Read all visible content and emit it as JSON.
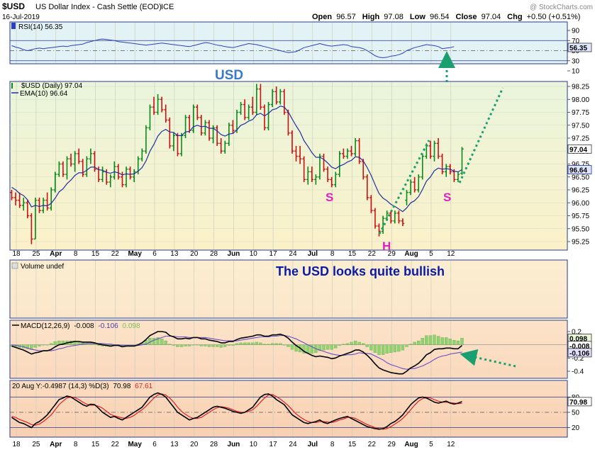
{
  "header": {
    "symbol": "$USD",
    "name": "US Dollar Index - Cash Settle (EOD)",
    "exchange": "ICE",
    "date": "16-Jul-2019",
    "open_label": "Open",
    "open": "96.57",
    "high_label": "High",
    "high": "97.08",
    "low_label": "Low",
    "low": "96.54",
    "close_label": "Close",
    "close": "97.04",
    "chg_label": "Chg",
    "chg": "+0.50 (+0.51%)",
    "copyright": "@ StockCharts.com"
  },
  "colors": {
    "up": "#0a8a1a",
    "down": "#cc1111",
    "ema": "#1f2fa0",
    "rsi": "#2a40c0",
    "macd_line": "#000000",
    "macd_signal": "#6a50c8",
    "hist": "#8ed46e",
    "stoch_k": "#000000",
    "stoch_d": "#e02020",
    "annot": "#1aa070",
    "label_blue": "#3a78c8",
    "label_pink": "#e020c0",
    "text_navy": "#0a1aa8"
  },
  "x_axis": {
    "labels": [
      "18",
      "25",
      "Apr",
      "8",
      "15",
      "22",
      "May",
      "6",
      "13",
      "20",
      "28",
      "Jun",
      "10",
      "17",
      "24",
      "Jul",
      "8",
      "15",
      "22",
      "29",
      "Aug",
      "5",
      "12"
    ],
    "bold": [
      "Apr",
      "May",
      "Jun",
      "Jul",
      "Aug"
    ]
  },
  "rsi": {
    "label": "RSI(14) 56.35",
    "current": 56.35,
    "current_label": "56.35",
    "ticks": [
      "90",
      "70",
      "50",
      "30",
      "10"
    ],
    "upper": 70,
    "lower": 30,
    "values": [
      60,
      57,
      55,
      52,
      50,
      52,
      54,
      55,
      54,
      55,
      56,
      57,
      58,
      59,
      58,
      60,
      61,
      62,
      63,
      66,
      68,
      70,
      72,
      73,
      72,
      71,
      70,
      68,
      67,
      66,
      65,
      64,
      63,
      62,
      61,
      62,
      63,
      64,
      65,
      64,
      63,
      62,
      61,
      60,
      59,
      58,
      60,
      62,
      64,
      66,
      65,
      63,
      61,
      60,
      58,
      57,
      56,
      58,
      60,
      62,
      64,
      63,
      62,
      60,
      58,
      56,
      54,
      52,
      50,
      48,
      46,
      47,
      48,
      52,
      56,
      58,
      60,
      62,
      64,
      62,
      60,
      59,
      60,
      61,
      62,
      61,
      58,
      57,
      56,
      54,
      50,
      45,
      40,
      37,
      36,
      37,
      39,
      40,
      42,
      45,
      50,
      53,
      56,
      58,
      60,
      62,
      61,
      60,
      58,
      54,
      55,
      56,
      58
    ]
  },
  "price": {
    "label": "$USD (Daily) 97.04",
    "ema_label": "EMA(10) 96.64",
    "current": 97.04,
    "current_label": "97.04",
    "ema_current": 96.64,
    "ema_current_label": "96.64",
    "ticks": [
      "98.25",
      "98.00",
      "97.75",
      "97.50",
      "97.25",
      "97.00",
      "96.75",
      "96.50",
      "96.25",
      "96.00",
      "95.75",
      "95.50",
      "95.25"
    ],
    "ohlc": [
      [
        96.2,
        96.25,
        96.05,
        96.1
      ],
      [
        96.1,
        96.2,
        95.95,
        96.05
      ],
      [
        96.05,
        96.2,
        95.9,
        95.95
      ],
      [
        95.95,
        96.1,
        95.85,
        96.0
      ],
      [
        96.0,
        96.05,
        95.7,
        95.75
      ],
      [
        95.75,
        95.8,
        95.2,
        95.3
      ],
      [
        95.3,
        96.1,
        95.3,
        96.05
      ],
      [
        96.05,
        96.1,
        95.8,
        95.85
      ],
      [
        95.85,
        96.1,
        95.8,
        96.05
      ],
      [
        96.05,
        96.2,
        95.85,
        95.9
      ],
      [
        95.9,
        96.3,
        95.85,
        96.25
      ],
      [
        96.25,
        96.6,
        96.2,
        96.55
      ],
      [
        96.55,
        96.8,
        96.5,
        96.75
      ],
      [
        96.75,
        96.8,
        96.5,
        96.55
      ],
      [
        96.55,
        96.9,
        96.45,
        96.85
      ],
      [
        96.85,
        96.95,
        96.7,
        96.75
      ],
      [
        96.75,
        97.0,
        96.6,
        96.95
      ],
      [
        96.95,
        97.05,
        96.75,
        96.8
      ],
      [
        96.8,
        96.85,
        96.5,
        96.55
      ],
      [
        96.55,
        96.9,
        96.5,
        96.85
      ],
      [
        96.85,
        97.05,
        96.75,
        96.95
      ],
      [
        96.95,
        97.0,
        96.6,
        96.65
      ],
      [
        96.65,
        96.7,
        96.4,
        96.45
      ],
      [
        96.45,
        96.7,
        96.4,
        96.6
      ],
      [
        96.6,
        96.65,
        96.35,
        96.4
      ],
      [
        96.4,
        96.55,
        96.3,
        96.5
      ],
      [
        96.5,
        96.8,
        96.45,
        96.7
      ],
      [
        96.7,
        96.75,
        96.45,
        96.5
      ],
      [
        96.5,
        96.6,
        96.3,
        96.35
      ],
      [
        96.35,
        96.7,
        96.3,
        96.65
      ],
      [
        96.65,
        96.7,
        96.45,
        96.5
      ],
      [
        96.5,
        96.65,
        96.4,
        96.6
      ],
      [
        96.6,
        96.9,
        96.55,
        96.85
      ],
      [
        96.85,
        97.05,
        96.8,
        97.0
      ],
      [
        97.0,
        97.5,
        96.95,
        97.45
      ],
      [
        97.45,
        97.9,
        97.4,
        97.85
      ],
      [
        97.85,
        98.05,
        97.7,
        97.75
      ],
      [
        97.75,
        98.1,
        97.7,
        98.0
      ],
      [
        98.0,
        98.05,
        97.75,
        97.8
      ],
      [
        97.8,
        97.9,
        97.55,
        97.6
      ],
      [
        97.6,
        97.65,
        97.05,
        97.1
      ],
      [
        97.1,
        97.35,
        97.0,
        97.3
      ],
      [
        97.3,
        97.35,
        96.9,
        96.95
      ],
      [
        96.95,
        97.35,
        96.9,
        97.3
      ],
      [
        97.3,
        97.7,
        97.25,
        97.65
      ],
      [
        97.65,
        97.7,
        97.35,
        97.4
      ],
      [
        97.4,
        97.9,
        97.35,
        97.85
      ],
      [
        97.85,
        97.9,
        97.6,
        97.65
      ],
      [
        97.65,
        97.7,
        97.3,
        97.35
      ],
      [
        97.35,
        97.6,
        97.3,
        97.55
      ],
      [
        97.55,
        97.6,
        97.2,
        97.25
      ],
      [
        97.25,
        97.5,
        97.15,
        97.45
      ],
      [
        97.45,
        97.5,
        97.1,
        97.15
      ],
      [
        97.15,
        97.25,
        96.95,
        97.0
      ],
      [
        97.0,
        97.2,
        96.95,
        97.15
      ],
      [
        97.15,
        97.55,
        97.1,
        97.5
      ],
      [
        97.5,
        97.6,
        97.35,
        97.4
      ],
      [
        97.4,
        97.8,
        97.35,
        97.75
      ],
      [
        97.75,
        97.95,
        97.7,
        97.9
      ],
      [
        97.9,
        98.0,
        97.6,
        97.65
      ],
      [
        97.65,
        97.9,
        97.6,
        97.85
      ],
      [
        97.85,
        98.05,
        97.7,
        97.75
      ],
      [
        97.75,
        98.3,
        97.7,
        98.2
      ],
      [
        98.2,
        98.3,
        97.8,
        97.85
      ],
      [
        97.85,
        97.9,
        97.4,
        97.45
      ],
      [
        97.45,
        97.95,
        97.4,
        97.9
      ],
      [
        97.9,
        98.2,
        97.85,
        98.15
      ],
      [
        98.15,
        98.25,
        97.9,
        97.95
      ],
      [
        97.95,
        98.2,
        97.9,
        98.15
      ],
      [
        98.15,
        98.2,
        97.7,
        97.75
      ],
      [
        97.75,
        97.8,
        97.3,
        97.35
      ],
      [
        97.35,
        97.4,
        96.95,
        97.0
      ],
      [
        97.0,
        97.1,
        96.8,
        96.9
      ],
      [
        96.9,
        97.1,
        96.75,
        96.85
      ],
      [
        96.85,
        96.9,
        96.4,
        96.45
      ],
      [
        96.45,
        96.7,
        96.35,
        96.6
      ],
      [
        96.6,
        96.7,
        96.4,
        96.45
      ],
      [
        96.45,
        96.55,
        96.35,
        96.5
      ],
      [
        96.5,
        96.95,
        96.45,
        96.9
      ],
      [
        96.9,
        96.95,
        96.6,
        96.65
      ],
      [
        96.65,
        96.7,
        96.4,
        96.45
      ],
      [
        96.45,
        96.5,
        96.3,
        96.35
      ],
      [
        96.35,
        96.6,
        96.3,
        96.55
      ],
      [
        96.55,
        97.0,
        96.5,
        96.95
      ],
      [
        96.95,
        97.05,
        96.85,
        96.9
      ],
      [
        96.9,
        97.05,
        96.85,
        97.0
      ],
      [
        97.0,
        97.1,
        96.9,
        96.95
      ],
      [
        96.95,
        97.25,
        96.9,
        97.2
      ],
      [
        97.2,
        97.25,
        96.75,
        96.8
      ],
      [
        96.8,
        96.85,
        96.45,
        96.5
      ],
      [
        96.5,
        96.55,
        96.05,
        96.1
      ],
      [
        96.1,
        96.15,
        95.8,
        95.85
      ],
      [
        95.85,
        95.9,
        95.5,
        95.55
      ],
      [
        95.55,
        95.6,
        95.35,
        95.45
      ],
      [
        95.45,
        95.75,
        95.4,
        95.7
      ],
      [
        95.7,
        95.85,
        95.65,
        95.8
      ],
      [
        95.8,
        95.85,
        95.6,
        95.65
      ],
      [
        95.65,
        95.85,
        95.6,
        95.8
      ],
      [
        95.8,
        95.85,
        95.6,
        95.65
      ],
      [
        95.65,
        95.7,
        95.55,
        95.6
      ],
      [
        96.05,
        96.25,
        95.95,
        96.2
      ],
      [
        96.2,
        96.45,
        96.15,
        96.4
      ],
      [
        96.4,
        96.5,
        96.2,
        96.25
      ],
      [
        96.25,
        96.55,
        96.2,
        96.5
      ],
      [
        96.5,
        96.95,
        96.45,
        96.9
      ],
      [
        96.9,
        97.15,
        96.85,
        97.1
      ],
      [
        97.1,
        97.2,
        96.85,
        96.9
      ],
      [
        96.9,
        97.2,
        96.8,
        97.15
      ],
      [
        97.15,
        97.25,
        96.85,
        96.9
      ],
      [
        96.9,
        96.95,
        96.55,
        96.6
      ],
      [
        96.6,
        96.75,
        96.5,
        96.7
      ],
      [
        96.7,
        96.75,
        96.55,
        96.6
      ],
      [
        96.6,
        96.65,
        96.4,
        96.45
      ],
      [
        96.45,
        96.6,
        96.4,
        96.55
      ],
      [
        96.57,
        97.08,
        96.54,
        97.04
      ]
    ],
    "ema": [
      96.3,
      96.25,
      96.18,
      96.14,
      96.06,
      95.92,
      95.95,
      95.93,
      95.95,
      95.94,
      95.99,
      96.09,
      96.21,
      96.27,
      96.37,
      96.44,
      96.53,
      96.58,
      96.58,
      96.63,
      96.69,
      96.69,
      96.64,
      96.63,
      96.59,
      96.57,
      96.6,
      96.58,
      96.54,
      96.56,
      96.55,
      96.56,
      96.61,
      96.68,
      96.81,
      97.0,
      97.13,
      97.29,
      97.38,
      97.42,
      97.37,
      97.36,
      97.3,
      97.3,
      97.37,
      97.38,
      97.47,
      97.5,
      97.47,
      97.48,
      97.44,
      97.44,
      97.39,
      97.32,
      97.29,
      97.33,
      97.34,
      97.41,
      97.5,
      97.53,
      97.58,
      97.61,
      97.7,
      97.73,
      97.68,
      97.73,
      97.8,
      97.82,
      97.87,
      97.85,
      97.76,
      97.62,
      97.49,
      97.37,
      97.2,
      97.09,
      96.97,
      96.88,
      96.88,
      96.84,
      96.77,
      96.69,
      96.66,
      96.71,
      96.74,
      96.79,
      96.82,
      96.89,
      96.88,
      96.81,
      96.68,
      96.53,
      96.35,
      96.18,
      96.09,
      96.04,
      95.97,
      95.93,
      95.88,
      95.83,
      95.9,
      96.0,
      96.04,
      96.12,
      96.26,
      96.42,
      96.5,
      96.62,
      96.67,
      96.65,
      96.66,
      96.65,
      96.61,
      96.6,
      96.64
    ],
    "annotations": {
      "usd": "USD",
      "s_left": "S",
      "head": "H",
      "s_right": "S"
    }
  },
  "volume": {
    "label": "Volume undef",
    "note": "The USD looks quite bullish"
  },
  "macd": {
    "label_prefix": "MACD(12,26,9)",
    "macd_val": "-0.008",
    "signal_val": "-0.106",
    "hist_val": "0.098",
    "ticks": [
      "0.2",
      "0.0",
      "-0.2",
      "-0.4"
    ],
    "current_macd": -0.008,
    "current_signal": -0.106,
    "current_hist": 0.098,
    "macd_label": "-0.008",
    "signal_label": "-0.106",
    "hist_label": "0.098",
    "line": [
      -0.02,
      -0.04,
      -0.06,
      -0.08,
      -0.11,
      -0.14,
      -0.12,
      -0.11,
      -0.09,
      -0.09,
      -0.07,
      -0.03,
      0.0,
      0.01,
      0.03,
      0.04,
      0.05,
      0.05,
      0.04,
      0.04,
      0.04,
      0.03,
      0.01,
      0.0,
      -0.01,
      -0.02,
      -0.01,
      -0.01,
      -0.03,
      -0.02,
      -0.02,
      -0.02,
      0.0,
      0.03,
      0.08,
      0.14,
      0.17,
      0.2,
      0.2,
      0.19,
      0.14,
      0.12,
      0.09,
      0.09,
      0.1,
      0.09,
      0.11,
      0.11,
      0.09,
      0.09,
      0.07,
      0.06,
      0.05,
      0.03,
      0.03,
      0.05,
      0.05,
      0.08,
      0.1,
      0.11,
      0.12,
      0.13,
      0.15,
      0.15,
      0.13,
      0.13,
      0.15,
      0.15,
      0.16,
      0.14,
      0.1,
      0.04,
      -0.01,
      -0.05,
      -0.1,
      -0.13,
      -0.16,
      -0.18,
      -0.17,
      -0.18,
      -0.19,
      -0.21,
      -0.2,
      -0.17,
      -0.15,
      -0.13,
      -0.11,
      -0.08,
      -0.08,
      -0.11,
      -0.16,
      -0.22,
      -0.29,
      -0.35,
      -0.38,
      -0.4,
      -0.42,
      -0.43,
      -0.44,
      -0.44,
      -0.4,
      -0.35,
      -0.32,
      -0.28,
      -0.22,
      -0.15,
      -0.12,
      -0.07,
      -0.06,
      -0.06,
      -0.05,
      -0.05,
      -0.06,
      -0.06,
      -0.01
    ],
    "signal": [
      0.0,
      -0.01,
      -0.02,
      -0.03,
      -0.05,
      -0.07,
      -0.08,
      -0.09,
      -0.09,
      -0.09,
      -0.09,
      -0.08,
      -0.06,
      -0.05,
      -0.03,
      -0.02,
      -0.01,
      0.0,
      0.01,
      0.02,
      0.02,
      0.02,
      0.02,
      0.02,
      0.01,
      0.01,
      0.0,
      0.0,
      -0.01,
      -0.01,
      -0.01,
      -0.01,
      -0.01,
      0.0,
      0.01,
      0.04,
      0.07,
      0.09,
      0.11,
      0.13,
      0.13,
      0.13,
      0.12,
      0.12,
      0.12,
      0.11,
      0.11,
      0.11,
      0.11,
      0.11,
      0.1,
      0.09,
      0.08,
      0.07,
      0.06,
      0.06,
      0.06,
      0.06,
      0.07,
      0.08,
      0.09,
      0.1,
      0.11,
      0.12,
      0.12,
      0.12,
      0.13,
      0.13,
      0.14,
      0.14,
      0.13,
      0.11,
      0.09,
      0.06,
      0.03,
      0.0,
      -0.03,
      -0.06,
      -0.08,
      -0.1,
      -0.12,
      -0.14,
      -0.15,
      -0.16,
      -0.16,
      -0.15,
      -0.15,
      -0.14,
      -0.12,
      -0.13,
      -0.13,
      -0.14,
      -0.17,
      -0.2,
      -0.23,
      -0.27,
      -0.3,
      -0.32,
      -0.34,
      -0.36,
      -0.37,
      -0.36,
      -0.36,
      -0.34,
      -0.32,
      -0.29,
      -0.26,
      -0.22,
      -0.19,
      -0.17,
      -0.16,
      -0.14,
      -0.13,
      -0.12,
      -0.11
    ]
  },
  "stoch": {
    "label_prefix": "20 Aug Y:-0.4987 (14,3) %D(3)",
    "k_val": "70.98",
    "d_val": "67.61",
    "current_k": 70.98,
    "current_label": "70.98",
    "ticks": [
      "80",
      "50",
      "20"
    ],
    "upper": 80,
    "lower": 20,
    "mid": 50,
    "k": [
      40,
      35,
      30,
      28,
      24,
      20,
      28,
      32,
      38,
      45,
      55,
      65,
      75,
      78,
      82,
      80,
      75,
      70,
      65,
      62,
      66,
      65,
      58,
      50,
      45,
      40,
      42,
      38,
      35,
      40,
      45,
      50,
      55,
      60,
      70,
      80,
      85,
      88,
      85,
      80,
      70,
      60,
      50,
      45,
      40,
      35,
      38,
      40,
      45,
      50,
      55,
      60,
      62,
      60,
      58,
      55,
      52,
      50,
      48,
      50,
      55,
      60,
      70,
      80,
      85,
      86,
      82,
      75,
      70,
      65,
      55,
      45,
      40,
      35,
      30,
      28,
      30,
      32,
      35,
      30,
      28,
      32,
      35,
      38,
      40,
      42,
      38,
      34,
      30,
      26,
      22,
      20,
      18,
      17,
      18,
      22,
      28,
      32,
      38,
      45,
      55,
      65,
      72,
      78,
      80,
      78,
      74,
      70,
      68,
      70,
      72,
      68,
      66,
      68,
      70.98
    ],
    "d": [
      42,
      40,
      36,
      33,
      30,
      26,
      25,
      27,
      32,
      38,
      45,
      55,
      65,
      72,
      78,
      80,
      79,
      75,
      70,
      66,
      64,
      64,
      62,
      58,
      52,
      46,
      43,
      41,
      39,
      38,
      40,
      44,
      50,
      55,
      62,
      70,
      78,
      84,
      86,
      84,
      78,
      70,
      60,
      52,
      46,
      41,
      38,
      38,
      40,
      45,
      50,
      55,
      59,
      61,
      60,
      58,
      55,
      52,
      50,
      50,
      52,
      55,
      62,
      70,
      78,
      84,
      85,
      81,
      76,
      70,
      63,
      55,
      47,
      41,
      36,
      32,
      30,
      30,
      32,
      32,
      31,
      30,
      32,
      35,
      37,
      40,
      40,
      38,
      34,
      30,
      26,
      23,
      20,
      18,
      17,
      18,
      22,
      27,
      32,
      38,
      46,
      55,
      64,
      72,
      77,
      79,
      78,
      75,
      72,
      70,
      70,
      69,
      68,
      67,
      67.61
    ]
  }
}
